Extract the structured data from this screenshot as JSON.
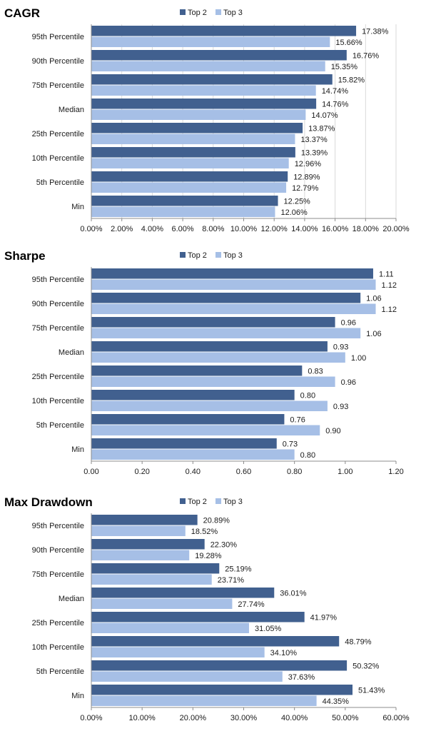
{
  "colors": {
    "top2": "#41608f",
    "top3": "#a6bfe6"
  },
  "chart_data": [
    {
      "type": "bar",
      "orientation": "horizontal",
      "title": "CAGR",
      "categories": [
        "95th Percentile",
        "90th Percentile",
        "75th Percentile",
        "Median",
        "25th Percentile",
        "10th Percentile",
        "5th Percentile",
        "Min"
      ],
      "series": [
        {
          "name": "Top 2",
          "color": "#41608f",
          "values": [
            17.38,
            16.76,
            15.82,
            14.76,
            13.87,
            13.39,
            12.89,
            12.25
          ],
          "labels": [
            "17.38%",
            "16.76%",
            "15.82%",
            "14.76%",
            "13.87%",
            "13.39%",
            "12.89%",
            "12.25%"
          ]
        },
        {
          "name": "Top 3",
          "color": "#a6bfe6",
          "values": [
            15.66,
            15.35,
            14.74,
            14.07,
            13.37,
            12.96,
            12.79,
            12.06
          ],
          "labels": [
            "15.66%",
            "15.35%",
            "14.74%",
            "14.07%",
            "13.37%",
            "12.96%",
            "12.79%",
            "12.06%"
          ]
        }
      ],
      "xlim": [
        0,
        20
      ],
      "ticks": [
        0,
        2,
        4,
        6,
        8,
        10,
        12,
        14,
        16,
        18,
        20
      ],
      "tick_labels": [
        "0.00%",
        "2.00%",
        "4.00%",
        "6.00%",
        "8.00%",
        "10.00%",
        "12.00%",
        "14.00%",
        "16.00%",
        "18.00%",
        "20.00%"
      ],
      "grid": true,
      "legend": "top"
    },
    {
      "type": "bar",
      "orientation": "horizontal",
      "title": "Sharpe",
      "categories": [
        "95th Percentile",
        "90th Percentile",
        "75th Percentile",
        "Median",
        "25th Percentile",
        "10th Percentile",
        "5th Percentile",
        "Min"
      ],
      "series": [
        {
          "name": "Top 2",
          "color": "#41608f",
          "values": [
            1.11,
            1.06,
            0.96,
            0.93,
            0.83,
            0.8,
            0.76,
            0.73
          ],
          "labels": [
            "1.11",
            "1.06",
            "0.96",
            "0.93",
            "0.83",
            "0.80",
            "0.76",
            "0.73"
          ]
        },
        {
          "name": "Top 3",
          "color": "#a6bfe6",
          "values": [
            1.12,
            1.12,
            1.06,
            1.0,
            0.96,
            0.93,
            0.9,
            0.8
          ],
          "labels": [
            "1.12",
            "1.12",
            "1.06",
            "1.00",
            "0.96",
            "0.93",
            "0.90",
            "0.80"
          ]
        }
      ],
      "xlim": [
        0,
        1.2
      ],
      "ticks": [
        0,
        0.2,
        0.4,
        0.6,
        0.8,
        1.0,
        1.2
      ],
      "tick_labels": [
        "0.00",
        "0.20",
        "0.40",
        "0.60",
        "0.80",
        "1.00",
        "1.20"
      ],
      "grid": false,
      "legend": "top"
    },
    {
      "type": "bar",
      "orientation": "horizontal",
      "title": "Max Drawdown",
      "categories": [
        "95th Percentile",
        "90th Percentile",
        "75th Percentile",
        "Median",
        "25th Percentile",
        "10th Percentile",
        "5th Percentile",
        "Min"
      ],
      "series": [
        {
          "name": "Top 2",
          "color": "#41608f",
          "values": [
            20.89,
            22.3,
            25.19,
            36.01,
            41.97,
            48.79,
            50.32,
            51.43
          ],
          "labels": [
            "20.89%",
            "22.30%",
            "25.19%",
            "36.01%",
            "41.97%",
            "48.79%",
            "50.32%",
            "51.43%"
          ]
        },
        {
          "name": "Top 3",
          "color": "#a6bfe6",
          "values": [
            18.52,
            19.28,
            23.71,
            27.74,
            31.05,
            34.1,
            37.63,
            44.35
          ],
          "labels": [
            "18.52%",
            "19.28%",
            "23.71%",
            "27.74%",
            "31.05%",
            "34.10%",
            "37.63%",
            "44.35%"
          ]
        }
      ],
      "xlim": [
        0,
        60
      ],
      "ticks": [
        0,
        10,
        20,
        30,
        40,
        50,
        60
      ],
      "tick_labels": [
        "0.00%",
        "10.00%",
        "20.00%",
        "30.00%",
        "40.00%",
        "50.00%",
        "60.00%"
      ],
      "grid": false,
      "legend": "top"
    }
  ]
}
